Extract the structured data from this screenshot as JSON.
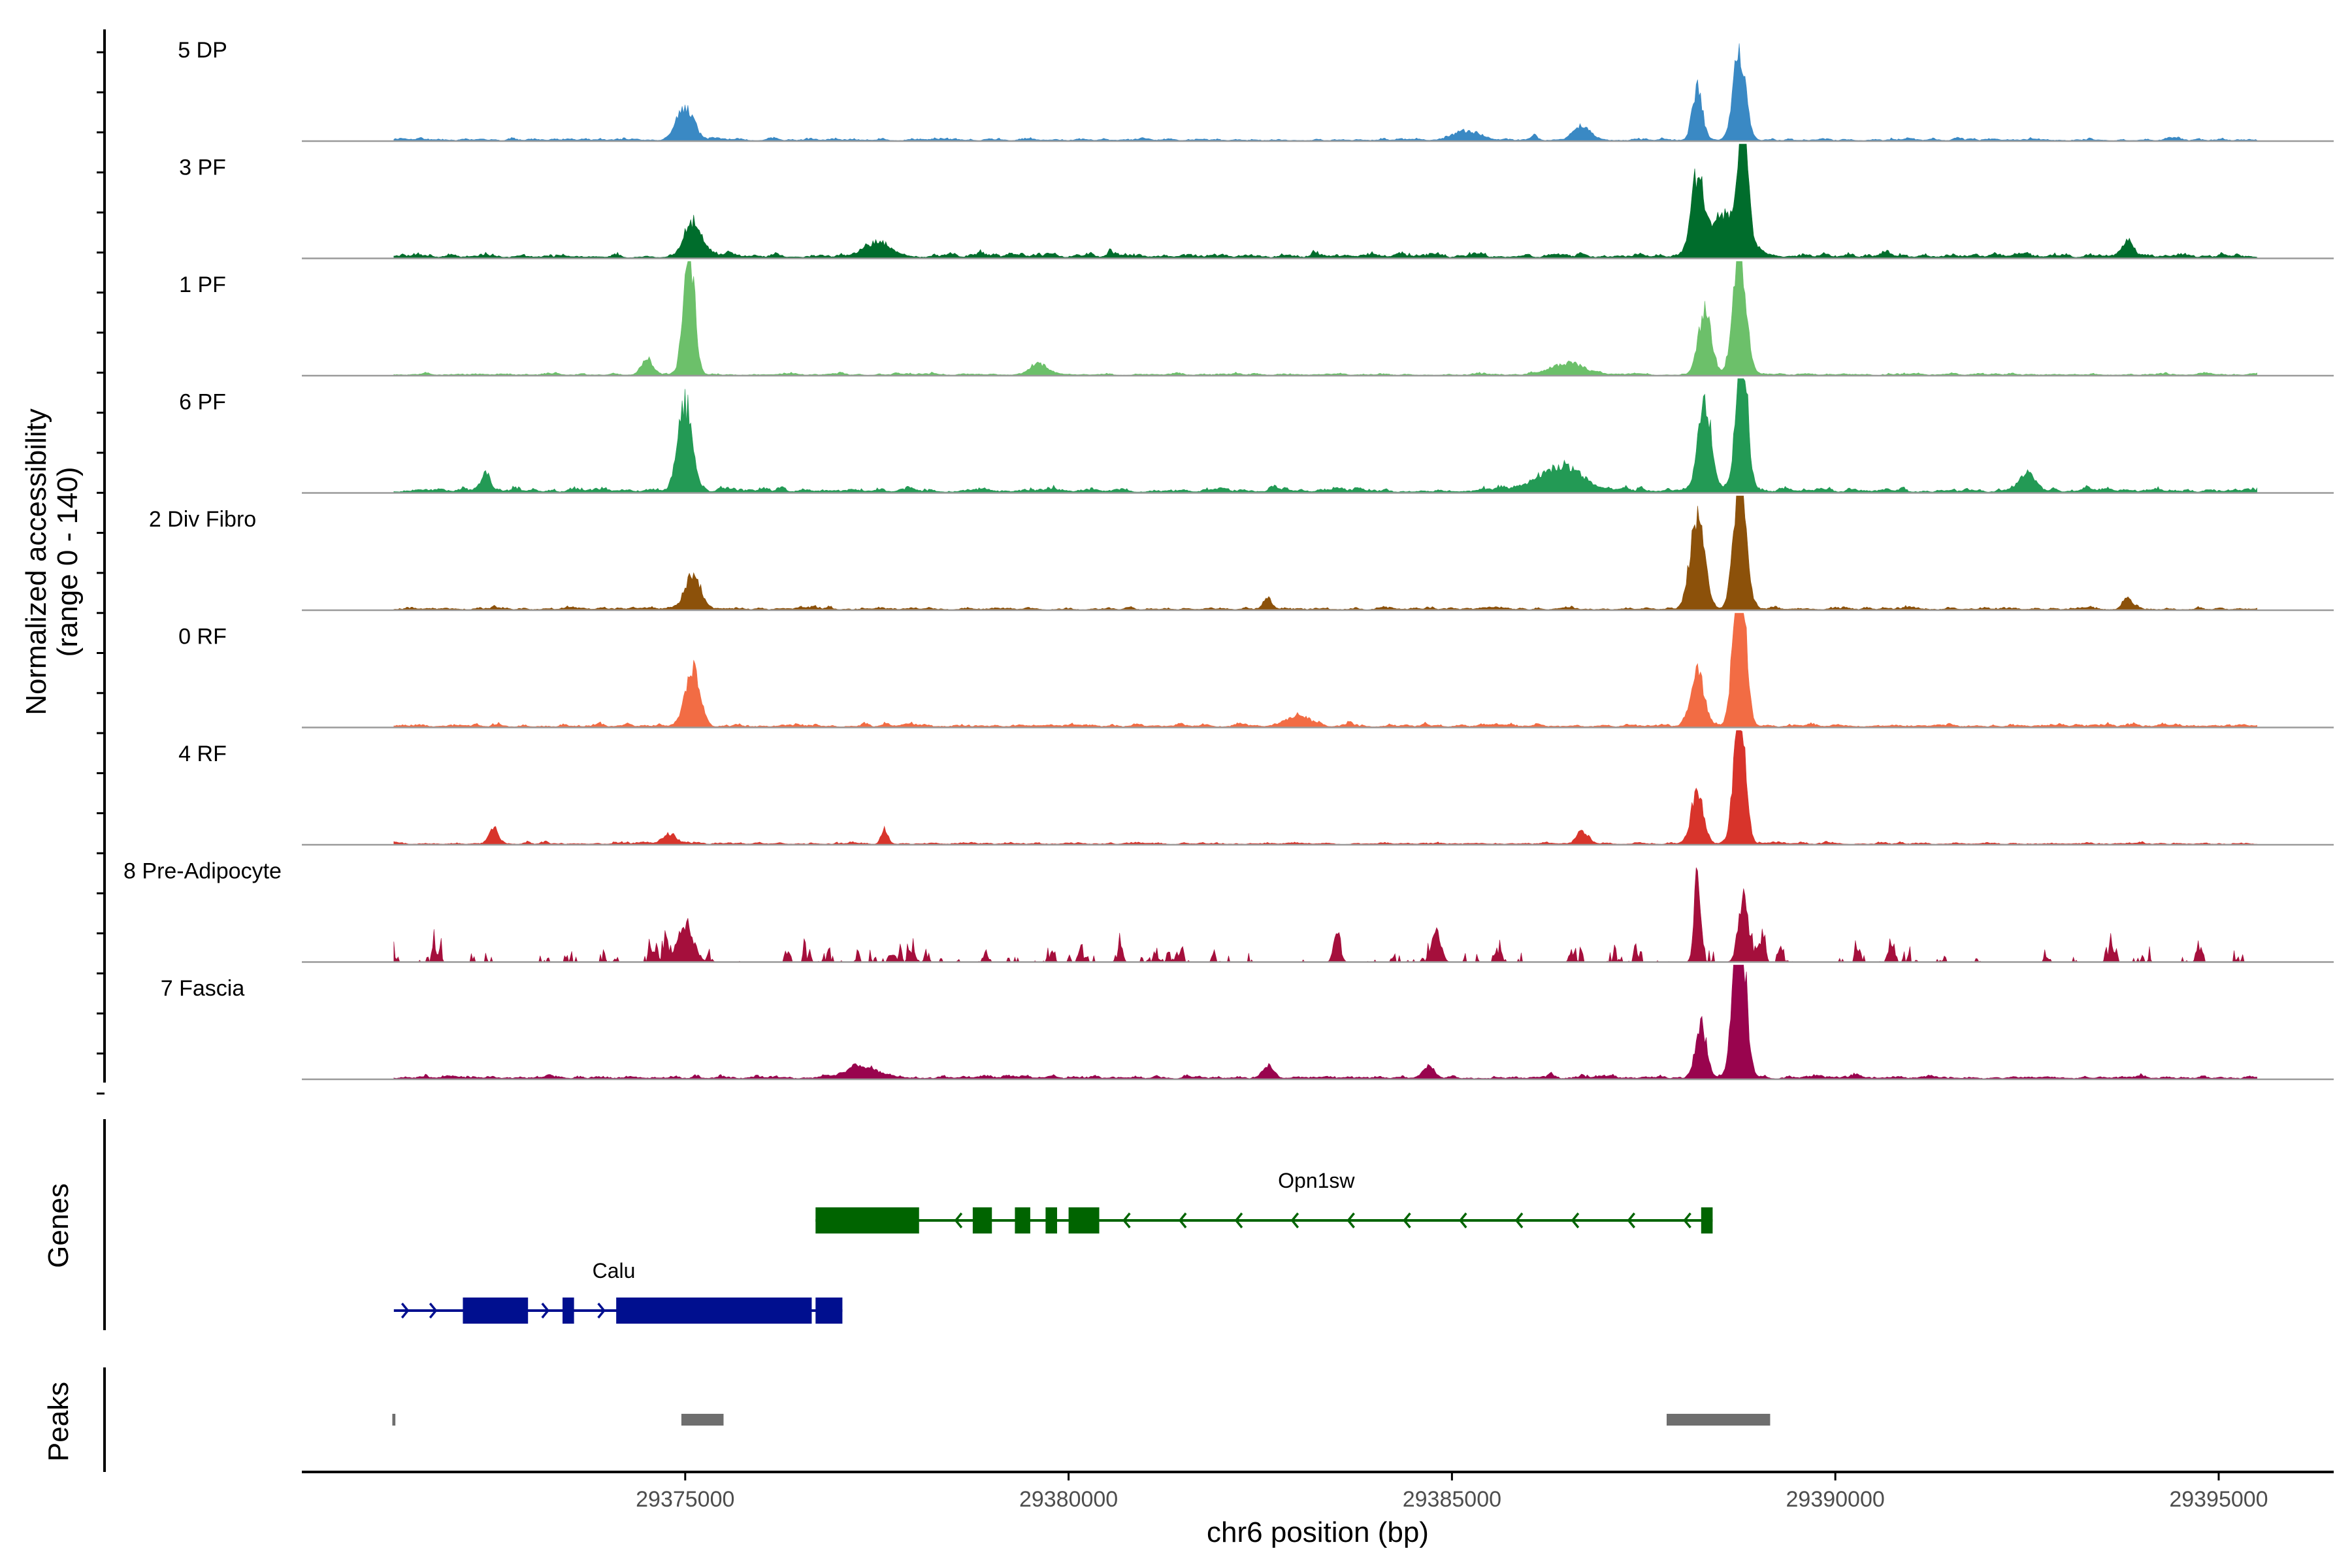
{
  "chart_data": {
    "type": "coverage",
    "y_title_line1": "Normalized accessibility",
    "y_title_line2": "(range 0 - 140)",
    "y_range": [
      0,
      140
    ],
    "x_label": "chr6 position (bp)",
    "xlim": [
      29370000,
      29396500
    ],
    "x_ticks": [
      29375000,
      29380000,
      29385000,
      29390000,
      29395000
    ],
    "x_tick_labels": [
      "29375000",
      "29380000",
      "29385000",
      "29390000",
      "29395000"
    ],
    "coverage_range": [
      29371200,
      29395500
    ],
    "tracks": [
      {
        "label": "5 DP",
        "color": "#3a89c4",
        "sparse": false,
        "noise": 8,
        "peaks": [
          [
            29375000,
            40,
            150
          ],
          [
            29388200,
            65,
            90
          ],
          [
            29388750,
            110,
            110
          ],
          [
            29386700,
            18,
            150
          ],
          [
            29385200,
            10,
            250
          ]
        ]
      },
      {
        "label": "3 PF",
        "color": "#006d2c",
        "sparse": false,
        "noise": 14,
        "peaks": [
          [
            29375100,
            42,
            160
          ],
          [
            29388200,
            95,
            110
          ],
          [
            29388800,
            160,
            80
          ],
          [
            29388600,
            55,
            300
          ],
          [
            29377500,
            18,
            250
          ],
          [
            29393800,
            18,
            100
          ]
        ]
      },
      {
        "label": "1 PF",
        "color": "#6cc06a",
        "sparse": false,
        "noise": 7,
        "peaks": [
          [
            29375050,
            160,
            100
          ],
          [
            29374500,
            20,
            100
          ],
          [
            29388300,
            80,
            120
          ],
          [
            29388750,
            150,
            120
          ],
          [
            29379600,
            14,
            150
          ],
          [
            29386500,
            14,
            300
          ]
        ]
      },
      {
        "label": "6 PF",
        "color": "#239a55",
        "sparse": false,
        "noise": 14,
        "peaks": [
          [
            29375000,
            105,
            130
          ],
          [
            29388300,
            110,
            120
          ],
          [
            29388780,
            190,
            100
          ],
          [
            29372400,
            22,
            80
          ],
          [
            29386400,
            30,
            400
          ],
          [
            29392500,
            20,
            150
          ]
        ]
      },
      {
        "label": "2 Div Fibro",
        "color": "#8c510a",
        "sparse": false,
        "noise": 8,
        "peaks": [
          [
            29375100,
            42,
            140
          ],
          [
            29388200,
            115,
            130
          ],
          [
            29388750,
            165,
            110
          ],
          [
            29382600,
            14,
            80
          ],
          [
            29393800,
            14,
            80
          ]
        ]
      },
      {
        "label": "0 RF",
        "color": "#f26c44",
        "sparse": false,
        "noise": 10,
        "peaks": [
          [
            29375100,
            70,
            130
          ],
          [
            29388200,
            65,
            120
          ],
          [
            29388750,
            200,
            110
          ],
          [
            29383000,
            14,
            200
          ]
        ]
      },
      {
        "label": "4 RF",
        "color": "#d8342b",
        "sparse": false,
        "noise": 7,
        "peaks": [
          [
            29372500,
            20,
            80
          ],
          [
            29374800,
            12,
            120
          ],
          [
            29377600,
            18,
            60
          ],
          [
            29386700,
            16,
            100
          ],
          [
            29388200,
            65,
            110
          ],
          [
            29388750,
            175,
            100
          ]
        ]
      },
      {
        "label": "8 Pre-Adipocyte",
        "color": "#a50f3c",
        "sparse": true,
        "noise": 32,
        "peaks": [
          [
            29388200,
            100,
            60
          ],
          [
            29388800,
            78,
            90
          ],
          [
            29375000,
            45,
            150
          ],
          [
            29383500,
            36,
            60
          ],
          [
            29384800,
            36,
            80
          ]
        ]
      },
      {
        "label": "7 Fascia",
        "color": "#99044e",
        "sparse": false,
        "noise": 10,
        "peaks": [
          [
            29388250,
            65,
            100
          ],
          [
            29388750,
            215,
            110
          ],
          [
            29382600,
            14,
            100
          ],
          [
            29384700,
            14,
            100
          ],
          [
            29377300,
            14,
            300
          ]
        ]
      }
    ],
    "genes_panel_label": "Genes",
    "genes": [
      {
        "name": "Opn1sw",
        "strand": "-",
        "color": "#006400",
        "row": 0,
        "start": 29376700,
        "end": 29388400,
        "exons": [
          [
            29376700,
            29378050
          ],
          [
            29378750,
            29379000
          ],
          [
            29379300,
            29379500
          ],
          [
            29379700,
            29379850
          ],
          [
            29380000,
            29380400
          ],
          [
            29388250,
            29388400
          ]
        ]
      },
      {
        "name": "Calu",
        "strand": "+",
        "color": "#000f8f",
        "row": 1,
        "start": 29371200,
        "end": 29377050,
        "exons": [
          [
            29372100,
            29372950
          ],
          [
            29373400,
            29373550
          ],
          [
            29374100,
            29376650
          ],
          [
            29376700,
            29377050
          ]
        ]
      }
    ],
    "peaks_panel_label": "Peaks",
    "peaks_color": "#6e6e6e",
    "peak_regions": [
      [
        29371180,
        29371220
      ],
      [
        29374950,
        29375500
      ],
      [
        29387800,
        29389150
      ]
    ]
  }
}
